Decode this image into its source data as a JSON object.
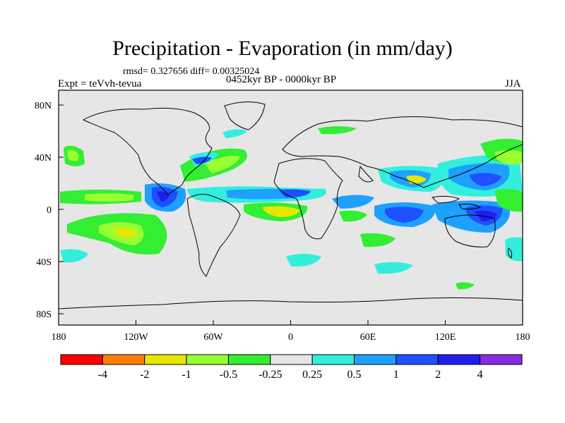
{
  "title": "Precipitation - Evaporation (in mm/day)",
  "stats": "rmsd= 0.327656 diff= 0.00325024",
  "experiment": "Expt = teVvh-tevua",
  "period": "0452kyr BP - 0000kyr BP",
  "season": "JJA",
  "axes": {
    "x_ticks": [
      "180",
      "120W",
      "60W",
      "0",
      "60E",
      "120E",
      "180"
    ],
    "y_ticks": [
      "80N",
      "40N",
      "0",
      "40S",
      "80S"
    ]
  },
  "colorbar": {
    "colors": [
      "#ff0000",
      "#ff8000",
      "#e6e600",
      "#99ff33",
      "#33ee33",
      "#e6e6e6",
      "#33eedd",
      "#1ea0ff",
      "#1e50ff",
      "#1e1eee",
      "#8a2be2"
    ],
    "labels": [
      "-4",
      "-2",
      "-1",
      "-0.5",
      "-0.25",
      "0.25",
      "0.5",
      "1",
      "2",
      "4"
    ]
  },
  "colors": {
    "background": "#e6e6e6",
    "coast": "#000000"
  }
}
